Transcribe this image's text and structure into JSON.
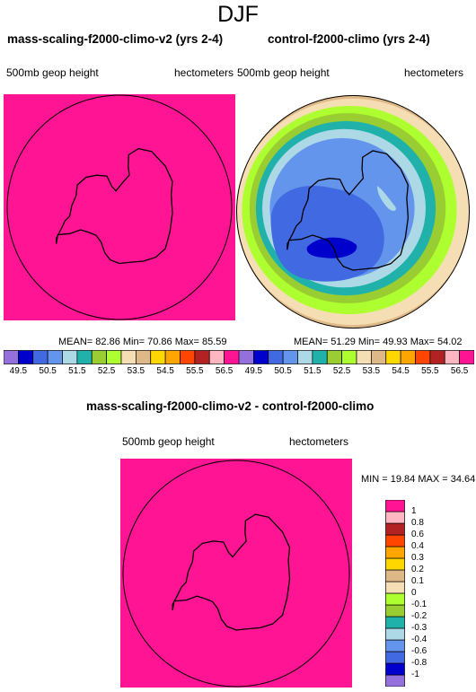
{
  "main_title": "DJF",
  "antarctica_outline": [
    [
      -68,
      48
    ],
    [
      -70,
      64
    ],
    [
      -71,
      84
    ],
    [
      -71,
      104
    ],
    [
      -69,
      116
    ],
    [
      -68,
      132
    ],
    [
      -67,
      150
    ],
    [
      -68,
      162
    ],
    [
      -71,
      170
    ],
    [
      -75,
      168
    ],
    [
      -78,
      163
    ],
    [
      -81,
      172
    ],
    [
      -84,
      -168
    ],
    [
      -82,
      -160
    ],
    [
      -78,
      -158
    ],
    [
      -76,
      -145
    ],
    [
      -74,
      -132
    ],
    [
      -73,
      -118
    ],
    [
      -74,
      -105
    ],
    [
      -73,
      -92
    ],
    [
      -72,
      -80
    ],
    [
      -70,
      -76
    ],
    [
      -68,
      -70
    ],
    [
      -65,
      -64
    ],
    [
      -64,
      -60
    ],
    [
      -66,
      -66
    ],
    [
      -70,
      -62
    ],
    [
      -74,
      -60
    ],
    [
      -76,
      -50
    ],
    [
      -77,
      -40
    ],
    [
      -76,
      -28
    ],
    [
      -73,
      -18
    ],
    [
      -71,
      -10
    ],
    [
      -70,
      0
    ],
    [
      -70,
      12
    ],
    [
      -69,
      24
    ],
    [
      -68,
      36
    ],
    [
      -68,
      48
    ]
  ],
  "chart_data": [
    {
      "type": "heatmap",
      "title": "mass-scaling-f2000-climo-v2 (yrs 2-4)",
      "variable": "500mb geop height",
      "units": "hectometers",
      "stats": {
        "mean_label": "MEAN=",
        "mean": "82.86",
        "min_label": "Min=",
        "min": "70.86",
        "max_label": "Max=",
        "max": "85.59"
      },
      "fill": "#ff1493",
      "levels": [
        49.5,
        50,
        50.5,
        51,
        51.5,
        52,
        52.5,
        53,
        53.5,
        54,
        54.5,
        55,
        55.5,
        56,
        56.5
      ],
      "level_labels": [
        "49.5",
        "50.5",
        "51.5",
        "52.5",
        "53.5",
        "54.5",
        "55.5",
        "56.5"
      ],
      "colors": [
        "#9370db",
        "#0000cd",
        "#4169e1",
        "#6495ed",
        "#add8e6",
        "#20b2aa",
        "#9acd32",
        "#adff2f",
        "#f5deb3",
        "#deb887",
        "#ffd700",
        "#ffa500",
        "#ff4500",
        "#b22222",
        "#ffb6c1",
        "#ff1493"
      ]
    },
    {
      "type": "heatmap",
      "title": "control-f2000-climo (yrs 2-4)",
      "variable": "500mb geop height",
      "units": "hectometers",
      "stats": {
        "mean_label": "MEAN=",
        "mean": "51.29",
        "min_label": "Min=",
        "min": "49.93",
        "max_label": "Max=",
        "max": "54.02"
      },
      "levels": [
        49.5,
        50,
        50.5,
        51,
        51.5,
        52,
        52.5,
        53,
        53.5,
        54,
        54.5,
        55,
        55.5,
        56,
        56.5
      ],
      "level_labels": [
        "49.5",
        "50.5",
        "51.5",
        "52.5",
        "53.5",
        "54.5",
        "55.5",
        "56.5"
      ],
      "colors": [
        "#9370db",
        "#0000cd",
        "#4169e1",
        "#6495ed",
        "#add8e6",
        "#20b2aa",
        "#9acd32",
        "#adff2f",
        "#f5deb3",
        "#deb887",
        "#ffd700",
        "#ffa500",
        "#ff4500",
        "#b22222",
        "#ffb6c1",
        "#ff1493"
      ]
    },
    {
      "type": "heatmap",
      "title": "mass-scaling-f2000-climo-v2 - control-f2000-climo",
      "variable": "500mb geop height",
      "units": "hectometers",
      "stats": {
        "min_label": "MIN =",
        "min": "19.84",
        "max_label": "MAX =",
        "max": "34.64"
      },
      "fill": "#ff1493",
      "levels": [
        -1,
        -0.8,
        -0.6,
        -0.4,
        -0.3,
        -0.2,
        -0.1,
        0,
        0.1,
        0.2,
        0.3,
        0.4,
        0.6,
        0.8,
        1
      ],
      "level_labels": [
        "-1",
        "-0.8",
        "-0.6",
        "-0.4",
        "-0.3",
        "-0.2",
        "-0.1",
        "0",
        "0.1",
        "0.2",
        "0.3",
        "0.4",
        "0.6",
        "0.8",
        "1"
      ],
      "colors": [
        "#9370db",
        "#0000cd",
        "#4169e1",
        "#6495ed",
        "#add8e6",
        "#20b2aa",
        "#9acd32",
        "#adff2f",
        "#f5deb3",
        "#deb887",
        "#ffd700",
        "#ffa500",
        "#ff4500",
        "#b22222",
        "#ffb6c1",
        "#ff1493"
      ]
    }
  ]
}
